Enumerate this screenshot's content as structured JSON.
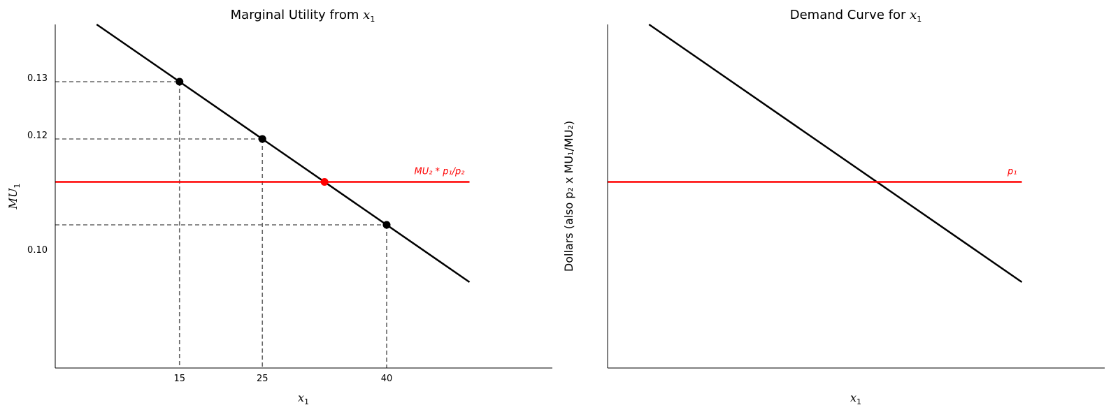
{
  "chart_data": [
    {
      "type": "line",
      "title": {
        "prefix": "Marginal Utility from ",
        "var": "x",
        "sub": "1"
      },
      "xlabel": {
        "var": "x",
        "sub": "1"
      },
      "ylabel": {
        "var": "MU",
        "sub": "1"
      },
      "xlim": [
        0,
        60
      ],
      "ylim": [
        0.08,
        0.14
      ],
      "xticks": [
        15,
        25,
        40
      ],
      "xtick_labels": [
        "15",
        "25",
        "40"
      ],
      "yticks": [
        0.13,
        0.12,
        0.1
      ],
      "ytick_labels": [
        "0.13",
        "0.12",
        "0.10"
      ],
      "series": [
        {
          "kind": "line",
          "color": "#000000",
          "x": [
            5,
            50
          ],
          "y": [
            0.14,
            0.095
          ]
        },
        {
          "kind": "hline",
          "color": "#ff0000",
          "x": [
            0,
            50
          ],
          "y": 0.1125
        }
      ],
      "points": [
        {
          "x": 15,
          "y": 0.13,
          "color": "#000000"
        },
        {
          "x": 25,
          "y": 0.12,
          "color": "#000000"
        },
        {
          "x": 32.5,
          "y": 0.1125,
          "color": "#ff0000"
        },
        {
          "x": 40,
          "y": 0.105,
          "color": "#000000"
        }
      ],
      "guides": [
        {
          "x": 15,
          "y": 0.13
        },
        {
          "x": 25,
          "y": 0.12
        },
        {
          "x": 40,
          "y": 0.105
        }
      ],
      "annotation": {
        "text": "MU₂ * p₁/p₂",
        "x": 50,
        "y": 0.1125,
        "color": "#ff0000"
      },
      "grid": false
    },
    {
      "type": "line",
      "title": {
        "prefix": "Demand Curve for ",
        "var": "x",
        "sub": "1"
      },
      "xlabel": {
        "var": "x",
        "sub": "1"
      },
      "ylabel": {
        "text": "Dollars (also p₂ x MU₁/MU₂)"
      },
      "xlim": [
        0,
        60
      ],
      "ylim": [
        0.08,
        0.14
      ],
      "series": [
        {
          "kind": "line",
          "color": "#000000",
          "x": [
            5,
            50
          ],
          "y": [
            0.14,
            0.095
          ]
        },
        {
          "kind": "hline",
          "color": "#ff0000",
          "x": [
            0,
            50
          ],
          "y": 0.1125
        }
      ],
      "annotation": {
        "text": "p₁",
        "x": 50,
        "y": 0.1125,
        "color": "#ff0000"
      },
      "grid": false
    }
  ]
}
